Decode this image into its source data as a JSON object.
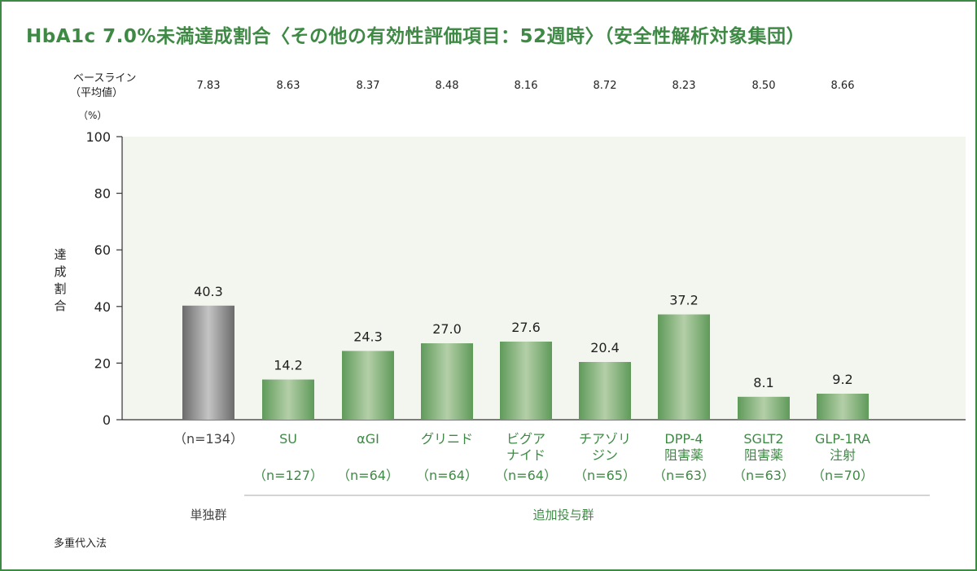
{
  "title": "HbA1c 7.0%未満達成割合〈その他の有効性評価項目：52週時〉（安全性解析対象集団）",
  "baseline": {
    "label_line1": "ベースライン",
    "label_line2": "（平均値）",
    "values": [
      "7.83",
      "8.63",
      "8.37",
      "8.48",
      "8.16",
      "8.72",
      "8.23",
      "8.50",
      "8.66"
    ]
  },
  "note": "多重代入法",
  "groups": {
    "mono_label": "単独群",
    "add_label": "追加投与群"
  },
  "colors": {
    "frame": "#3d8a45",
    "title": "#3e8a45",
    "plot_bg": "#f3f6ee",
    "mono_bar_dark": "#6b6b6b",
    "mono_bar_light": "#c4c4c4",
    "add_bar_dark": "#5f9a5a",
    "add_bar_light": "#b4cfa8",
    "mono_text": "#444444",
    "add_text": "#3e8a45"
  },
  "chart_data": {
    "type": "bar",
    "title": "HbA1c 7.0%未満達成割合〈その他の有効性評価項目：52週時〉（安全性解析対象集団）",
    "unit_label": "（%）",
    "ylabel": "達成割合",
    "ylim": [
      0,
      100
    ],
    "yticks": [
      0,
      20,
      40,
      60,
      80,
      100
    ],
    "grid": false,
    "categories": [
      {
        "lines": [
          "（n=134）"
        ],
        "group": "mono"
      },
      {
        "lines": [
          "SU",
          "",
          "（n=127）"
        ],
        "group": "add"
      },
      {
        "lines": [
          "αGI",
          "",
          "（n=64）"
        ],
        "group": "add"
      },
      {
        "lines": [
          "グリニド",
          "",
          "（n=64）"
        ],
        "group": "add"
      },
      {
        "lines": [
          "ビグア",
          "ナイド",
          "（n=64）"
        ],
        "group": "add"
      },
      {
        "lines": [
          "チアゾリ",
          "ジン",
          "（n=65）"
        ],
        "group": "add"
      },
      {
        "lines": [
          "DPP-4",
          "阻害薬",
          "（n=63）"
        ],
        "group": "add"
      },
      {
        "lines": [
          "SGLT2",
          "阻害薬",
          "（n=63）"
        ],
        "group": "add"
      },
      {
        "lines": [
          "GLP-1RA",
          "注射",
          "（n=70）"
        ],
        "group": "add"
      }
    ],
    "values": [
      40.3,
      14.2,
      24.3,
      27.0,
      27.6,
      20.4,
      37.2,
      8.1,
      9.2
    ],
    "value_labels": [
      "40.3",
      "14.2",
      "24.3",
      "27.0",
      "27.6",
      "20.4",
      "37.2",
      "8.1",
      "9.2"
    ]
  }
}
